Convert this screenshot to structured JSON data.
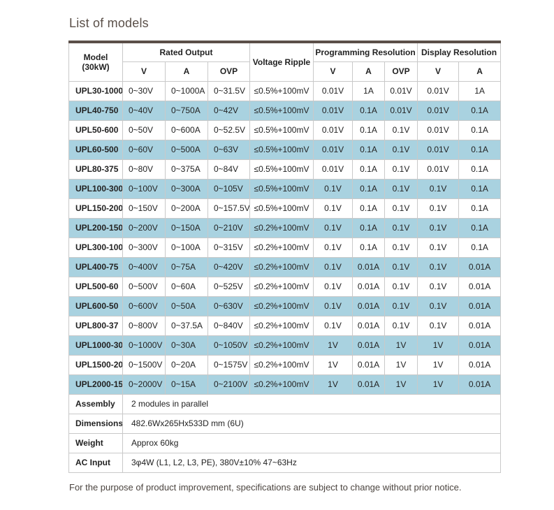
{
  "page": {
    "title": "List of models",
    "footnote": "For the purpose of product improvement, specifications are subject to change without prior notice."
  },
  "table": {
    "header": {
      "model_line1": "Model",
      "model_line2": "(30kW)",
      "rated_output": "Rated Output",
      "voltage_ripple": "Voltage Ripple",
      "programming_resolution": "Programming Resolution",
      "display_resolution": "Display Resolution",
      "sub_v": "V",
      "sub_a": "A",
      "sub_ovp": "OVP"
    },
    "rows": [
      {
        "model": "UPL30-1000",
        "v": "0~30V",
        "a": "0~1000A",
        "ovp": "0~31.5V",
        "ripple": "≤0.5%+100mV",
        "pv": "0.01V",
        "pa": "1A",
        "povp": "0.01V",
        "dv": "0.01V",
        "da": "1A",
        "highlight": false
      },
      {
        "model": "UPL40-750",
        "v": "0~40V",
        "a": "0~750A",
        "ovp": "0~42V",
        "ripple": "≤0.5%+100mV",
        "pv": "0.01V",
        "pa": "0.1A",
        "povp": "0.01V",
        "dv": "0.01V",
        "da": "0.1A",
        "highlight": true
      },
      {
        "model": "UPL50-600",
        "v": "0~50V",
        "a": "0~600A",
        "ovp": "0~52.5V",
        "ripple": "≤0.5%+100mV",
        "pv": "0.01V",
        "pa": "0.1A",
        "povp": "0.1V",
        "dv": "0.01V",
        "da": "0.1A",
        "highlight": false
      },
      {
        "model": "UPL60-500",
        "v": "0~60V",
        "a": "0~500A",
        "ovp": "0~63V",
        "ripple": "≤0.5%+100mV",
        "pv": "0.01V",
        "pa": "0.1A",
        "povp": "0.1V",
        "dv": "0.01V",
        "da": "0.1A",
        "highlight": true
      },
      {
        "model": "UPL80-375",
        "v": "0~80V",
        "a": "0~375A",
        "ovp": "0~84V",
        "ripple": "≤0.5%+100mV",
        "pv": "0.01V",
        "pa": "0.1A",
        "povp": "0.1V",
        "dv": "0.01V",
        "da": "0.1A",
        "highlight": false
      },
      {
        "model": "UPL100-300",
        "v": "0~100V",
        "a": "0~300A",
        "ovp": "0~105V",
        "ripple": "≤0.5%+100mV",
        "pv": "0.1V",
        "pa": "0.1A",
        "povp": "0.1V",
        "dv": "0.1V",
        "da": "0.1A",
        "highlight": true
      },
      {
        "model": "UPL150-200",
        "v": "0~150V",
        "a": "0~200A",
        "ovp": "0~157.5V",
        "ripple": "≤0.5%+100mV",
        "pv": "0.1V",
        "pa": "0.1A",
        "povp": "0.1V",
        "dv": "0.1V",
        "da": "0.1A",
        "highlight": false
      },
      {
        "model": "UPL200-150",
        "v": "0~200V",
        "a": "0~150A",
        "ovp": "0~210V",
        "ripple": "≤0.2%+100mV",
        "pv": "0.1V",
        "pa": "0.1A",
        "povp": "0.1V",
        "dv": "0.1V",
        "da": "0.1A",
        "highlight": true
      },
      {
        "model": "UPL300-100",
        "v": "0~300V",
        "a": "0~100A",
        "ovp": "0~315V",
        "ripple": "≤0.2%+100mV",
        "pv": "0.1V",
        "pa": "0.1A",
        "povp": "0.1V",
        "dv": "0.1V",
        "da": "0.1A",
        "highlight": false
      },
      {
        "model": "UPL400-75",
        "v": "0~400V",
        "a": "0~75A",
        "ovp": "0~420V",
        "ripple": "≤0.2%+100mV",
        "pv": "0.1V",
        "pa": "0.01A",
        "povp": "0.1V",
        "dv": "0.1V",
        "da": "0.01A",
        "highlight": true
      },
      {
        "model": "UPL500-60",
        "v": "0~500V",
        "a": "0~60A",
        "ovp": "0~525V",
        "ripple": "≤0.2%+100mV",
        "pv": "0.1V",
        "pa": "0.01A",
        "povp": "0.1V",
        "dv": "0.1V",
        "da": "0.01A",
        "highlight": false
      },
      {
        "model": "UPL600-50",
        "v": "0~600V",
        "a": "0~50A",
        "ovp": "0~630V",
        "ripple": "≤0.2%+100mV",
        "pv": "0.1V",
        "pa": "0.01A",
        "povp": "0.1V",
        "dv": "0.1V",
        "da": "0.01A",
        "highlight": true
      },
      {
        "model": "UPL800-37",
        "v": "0~800V",
        "a": "0~37.5A",
        "ovp": "0~840V",
        "ripple": "≤0.2%+100mV",
        "pv": "0.1V",
        "pa": "0.01A",
        "povp": "0.1V",
        "dv": "0.1V",
        "da": "0.01A",
        "highlight": false
      },
      {
        "model": "UPL1000-30",
        "v": "0~1000V",
        "a": "0~30A",
        "ovp": "0~1050V",
        "ripple": "≤0.2%+100mV",
        "pv": "1V",
        "pa": "0.01A",
        "povp": "1V",
        "dv": "1V",
        "da": "0.01A",
        "highlight": true
      },
      {
        "model": "UPL1500-20",
        "v": "0~1500V",
        "a": "0~20A",
        "ovp": "0~1575V",
        "ripple": "≤0.2%+100mV",
        "pv": "1V",
        "pa": "0.01A",
        "povp": "1V",
        "dv": "1V",
        "da": "0.01A",
        "highlight": false
      },
      {
        "model": "UPL2000-15",
        "v": "0~2000V",
        "a": "0~15A",
        "ovp": "0~2100V",
        "ripple": "≤0.2%+100mV",
        "pv": "1V",
        "pa": "0.01A",
        "povp": "1V",
        "dv": "1V",
        "da": "0.01A",
        "highlight": true
      }
    ],
    "spec_rows": [
      {
        "label": "Assembly",
        "value": "2 modules in parallel"
      },
      {
        "label": "Dimensions",
        "value": "482.6Wx265Hx533D mm (6U)"
      },
      {
        "label": "Weight",
        "value": "Approx 60kg"
      },
      {
        "label": "AC Input",
        "value": "3φ4W (L1, L2, L3, PE), 380V±10% 47~63Hz"
      }
    ],
    "colors": {
      "highlight_row": "#a9d2e0",
      "top_border": "#5b4f48",
      "border": "#c9c9c9",
      "title_text": "#5a4f48"
    }
  }
}
